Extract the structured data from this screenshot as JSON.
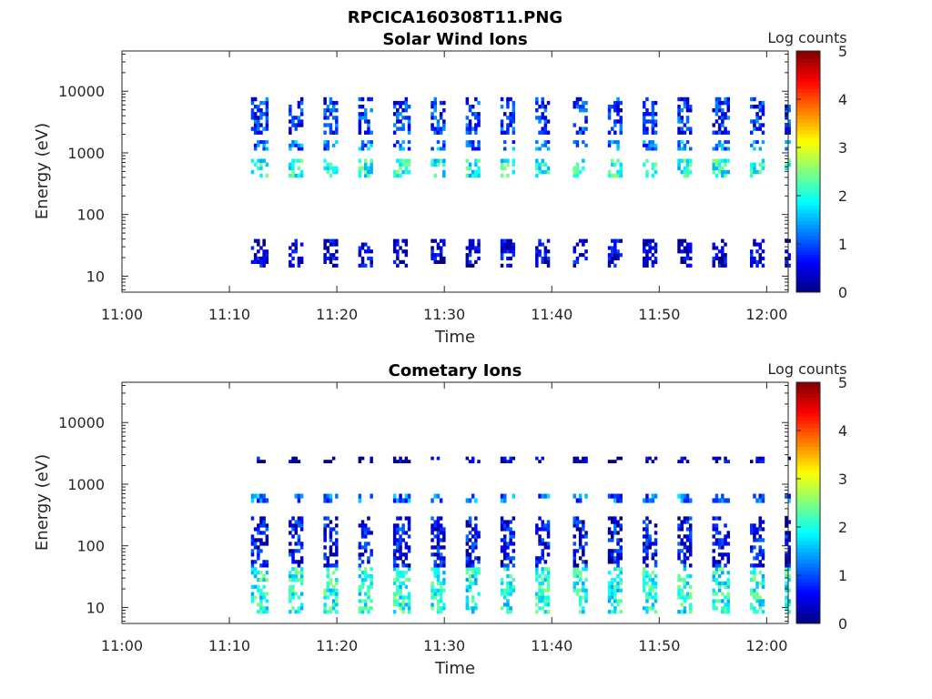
{
  "figure_title": "RPCICA160308T11.PNG",
  "chart_data": [
    {
      "type": "heatmap",
      "title": "Solar Wind Ions",
      "xlabel": "Time",
      "ylabel": "Energy (eV)",
      "x_range": [
        "11:00",
        "12:02"
      ],
      "x_ticks": [
        "11:00",
        "11:10",
        "11:20",
        "11:30",
        "11:40",
        "11:50",
        "12:00"
      ],
      "y_scale": "log",
      "y_range": [
        5.5,
        45000
      ],
      "y_ticks": [
        "10",
        "100",
        "1000",
        "10000"
      ],
      "y_tick_values": [
        10,
        100,
        1000,
        10000
      ],
      "colorbar": {
        "label": "Log counts",
        "range": [
          0,
          5
        ],
        "ticks": [
          "0",
          "1",
          "2",
          "3",
          "4",
          "5"
        ],
        "colormap": "jet"
      },
      "data_start": "11:12",
      "data_end": "12:02",
      "bands": [
        {
          "energy_min": 14,
          "energy_max": 40,
          "log_counts": 0.4
        },
        {
          "energy_min": 400,
          "energy_max": 800,
          "log_counts": 2.0
        },
        {
          "energy_min": 1100,
          "energy_max": 1600,
          "log_counts": 1.2
        },
        {
          "energy_min": 2000,
          "energy_max": 8000,
          "log_counts": 0.8
        }
      ]
    },
    {
      "type": "heatmap",
      "title": "Cometary Ions",
      "xlabel": "Time",
      "ylabel": "Energy (eV)",
      "x_range": [
        "11:00",
        "12:02"
      ],
      "x_ticks": [
        "11:00",
        "11:10",
        "11:20",
        "11:30",
        "11:40",
        "11:50",
        "12:00"
      ],
      "y_scale": "log",
      "y_range": [
        5.5,
        45000
      ],
      "y_ticks": [
        "10",
        "100",
        "1000",
        "10000"
      ],
      "y_tick_values": [
        10,
        100,
        1000,
        10000
      ],
      "colorbar": {
        "label": "Log counts",
        "range": [
          0,
          5
        ],
        "ticks": [
          "0",
          "1",
          "2",
          "3",
          "4",
          "5"
        ],
        "colormap": "jet"
      },
      "data_start": "11:12",
      "data_end": "12:02",
      "bands": [
        {
          "energy_min": 8,
          "energy_max": 45,
          "log_counts": 2.0
        },
        {
          "energy_min": 45,
          "energy_max": 300,
          "log_counts": 0.6
        },
        {
          "energy_min": 500,
          "energy_max": 700,
          "log_counts": 1.2
        },
        {
          "energy_min": 2200,
          "energy_max": 2800,
          "log_counts": 0.3
        }
      ]
    }
  ]
}
